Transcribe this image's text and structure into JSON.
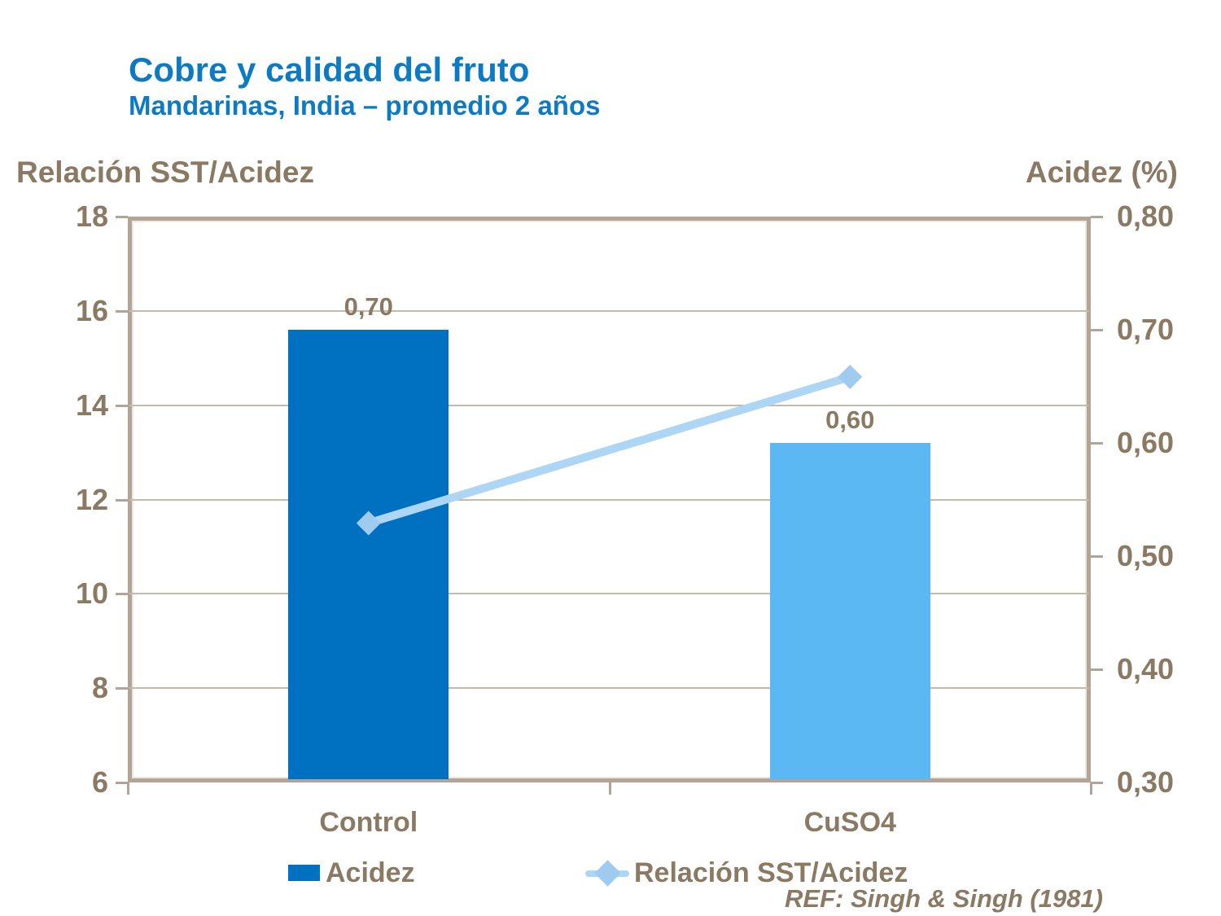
{
  "header": {
    "title": "Cobre y calidad del fruto",
    "subtitle": "Mandarinas, India – promedio 2 años"
  },
  "chart_data": {
    "type": "combo-bar-line",
    "categories": [
      "Control",
      "CuSO4"
    ],
    "series": [
      {
        "name": "Acidez",
        "type": "bar",
        "axis": "right",
        "values": [
          0.7,
          0.6
        ],
        "value_labels": [
          "0,70",
          "0,60"
        ],
        "bar_colors": [
          "#0070C0",
          "#5BB8F2"
        ]
      },
      {
        "name": "Relación SST/Acidez",
        "type": "line",
        "axis": "left",
        "values": [
          11.5,
          14.6
        ],
        "color": "#ACD6F4",
        "marker": "diamond",
        "marker_color": "#9FCBEF"
      }
    ],
    "left_axis": {
      "title": "Relación SST/Acidez",
      "min": 6,
      "max": 18,
      "ticks": [
        18,
        16,
        14,
        12,
        10,
        8,
        6
      ],
      "tick_labels": [
        "18",
        "16",
        "14",
        "12",
        "10",
        "8",
        "6"
      ]
    },
    "right_axis": {
      "title": "Acidez (%)",
      "min": 0.3,
      "max": 0.8,
      "ticks": [
        0.8,
        0.7,
        0.6,
        0.5,
        0.4,
        0.3
      ],
      "tick_labels": [
        "0,80",
        "0,70",
        "0,60",
        "0,50",
        "0,40",
        "0,30"
      ]
    },
    "grid": "horizontal",
    "legend_position": "bottom"
  },
  "legend": {
    "items": [
      {
        "label": "Acidez",
        "swatch": "#0070C0",
        "type": "bar"
      },
      {
        "label": "Relación SST/Acidez",
        "swatch": "#ACD6F4",
        "type": "line-diamond"
      }
    ]
  },
  "footer": {
    "reference": "REF: Singh & Singh (1981)"
  },
  "colors": {
    "title_blue": "#0C7BC3",
    "text_brown": "#8A7A63",
    "frame": "#B2A496",
    "gridline": "#C4B9AA",
    "bar_dark_blue": "#0070C0",
    "bar_light_blue": "#5BB8F2",
    "line_light_blue": "#ACD6F4",
    "marker_light_blue": "#9FCBEF"
  }
}
